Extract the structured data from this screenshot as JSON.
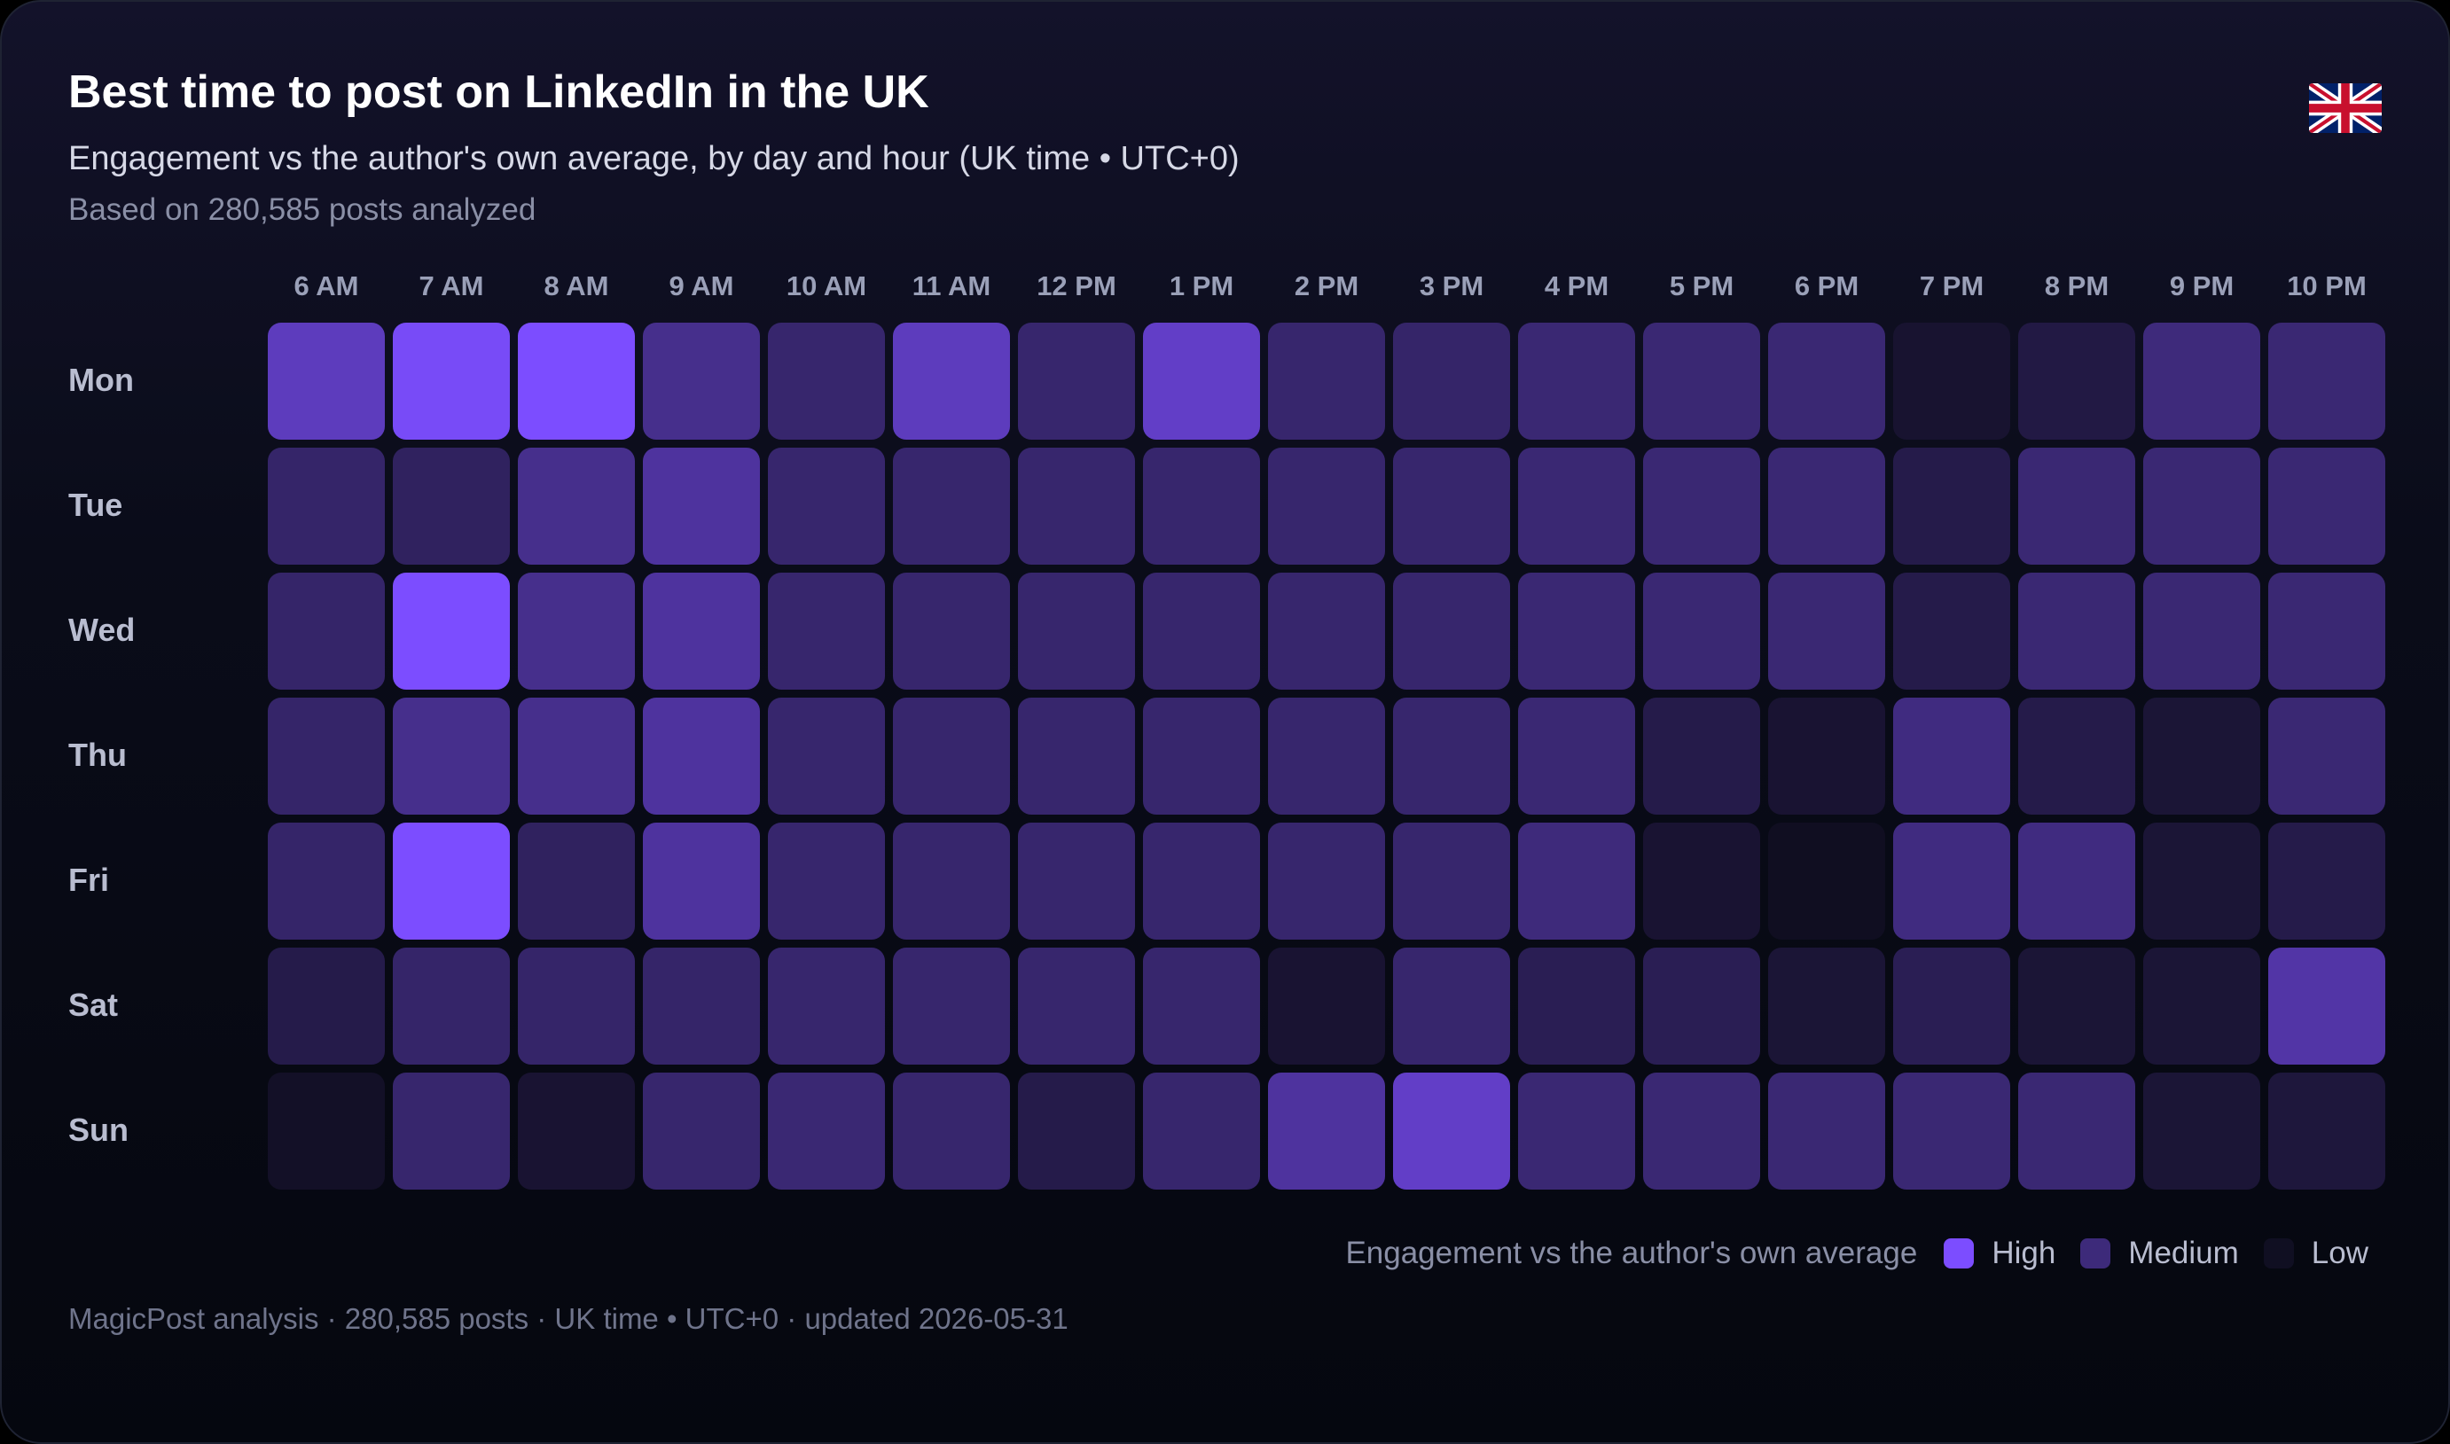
{
  "header": {
    "title": "Best time to post on LinkedIn in the UK",
    "subtitle": "Engagement vs the author's own average, by day and hour (UK time • UTC+0)",
    "caption": "Based on 280,585 posts analyzed",
    "flag_icon": "uk-flag-icon"
  },
  "legend": {
    "title": "Engagement vs the author's own average",
    "items": [
      {
        "label": "High",
        "color": "#7c4dff"
      },
      {
        "label": "Medium",
        "color": "#3d2a7a"
      },
      {
        "label": "Low",
        "color": "#100f22"
      }
    ]
  },
  "footer": "MagicPost analysis · 280,585 posts · UK time • UTC+0 · updated 2026-05-31",
  "colors": {
    "low": "#0b0b17",
    "mid": "#3a2873",
    "high": "#7c4dff",
    "background": "#05070f"
  },
  "chart_data": {
    "type": "heatmap",
    "title": "Best time to post on LinkedIn in the UK",
    "x": [
      "6 AM",
      "7 AM",
      "8 AM",
      "9 AM",
      "10 AM",
      "11 AM",
      "12 PM",
      "1 PM",
      "2 PM",
      "3 PM",
      "4 PM",
      "5 PM",
      "6 PM",
      "7 PM",
      "8 PM",
      "9 PM",
      "10 PM"
    ],
    "y": [
      "Mon",
      "Tue",
      "Wed",
      "Thu",
      "Fri",
      "Sat",
      "Sun"
    ],
    "values": [
      [
        0.74,
        0.97,
        1.0,
        0.55,
        0.42,
        0.74,
        0.42,
        0.78,
        0.42,
        0.4,
        0.45,
        0.45,
        0.45,
        0.12,
        0.22,
        0.48,
        0.45
      ],
      [
        0.4,
        0.35,
        0.55,
        0.62,
        0.42,
        0.42,
        0.42,
        0.42,
        0.42,
        0.42,
        0.45,
        0.45,
        0.45,
        0.25,
        0.45,
        0.45,
        0.45
      ],
      [
        0.4,
        1.0,
        0.55,
        0.62,
        0.42,
        0.42,
        0.42,
        0.42,
        0.42,
        0.42,
        0.45,
        0.45,
        0.45,
        0.25,
        0.45,
        0.45,
        0.45
      ],
      [
        0.4,
        0.55,
        0.55,
        0.62,
        0.42,
        0.42,
        0.42,
        0.42,
        0.42,
        0.42,
        0.45,
        0.25,
        0.13,
        0.5,
        0.25,
        0.15,
        0.45
      ],
      [
        0.4,
        1.0,
        0.35,
        0.62,
        0.42,
        0.42,
        0.42,
        0.42,
        0.42,
        0.42,
        0.48,
        0.13,
        0.05,
        0.5,
        0.5,
        0.15,
        0.25
      ],
      [
        0.25,
        0.4,
        0.4,
        0.4,
        0.42,
        0.42,
        0.42,
        0.42,
        0.13,
        0.42,
        0.3,
        0.3,
        0.15,
        0.3,
        0.15,
        0.15,
        0.65
      ],
      [
        0.08,
        0.42,
        0.13,
        0.42,
        0.45,
        0.42,
        0.25,
        0.42,
        0.62,
        0.78,
        0.45,
        0.45,
        0.45,
        0.45,
        0.45,
        0.15,
        0.18
      ]
    ],
    "legend": [
      "High",
      "Medium",
      "Low"
    ],
    "legend_placement": "bottom-right",
    "xlabel": "",
    "ylabel": ""
  }
}
